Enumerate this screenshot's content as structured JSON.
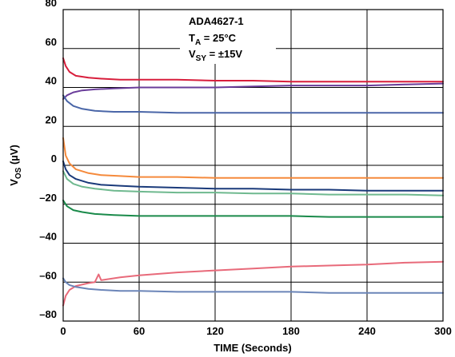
{
  "chart_data": {
    "type": "line",
    "xlabel": "TIME (Seconds)",
    "ylabel_main": "V",
    "ylabel_sub": "OS",
    "ylabel_unit": " (µV)",
    "xlim": [
      0,
      300
    ],
    "ylim": [
      -80,
      80
    ],
    "xticks": [
      0,
      60,
      120,
      180,
      240,
      300
    ],
    "yticks": [
      80,
      60,
      40,
      20,
      0,
      -20,
      -40,
      -60,
      -80
    ],
    "xtick_labels": [
      "0",
      "60",
      "120",
      "180",
      "240",
      "300"
    ],
    "ytick_labels": [
      "80",
      "60",
      "40",
      "20",
      "0",
      "–20",
      "–40",
      "–60",
      "–80"
    ],
    "grid": true,
    "annotation": {
      "line1": "ADA4627-1",
      "line2_main": "T",
      "line2_sub": "A",
      "line2_rest": " = 25°C",
      "line3_main": "V",
      "line3_sub": "SY",
      "line3_rest": " = ±15V"
    },
    "series": [
      {
        "color": "#d81e3c",
        "x": [
          0,
          2,
          5,
          10,
          20,
          30,
          45,
          60,
          90,
          120,
          150,
          180,
          210,
          240,
          270,
          300
        ],
        "y": [
          55,
          51,
          48,
          46,
          45,
          44.5,
          44,
          44,
          44,
          43.5,
          43.5,
          43,
          43,
          43,
          43,
          43
        ]
      },
      {
        "color": "#6a3d9a",
        "x": [
          0,
          3,
          8,
          15,
          25,
          40,
          60,
          90,
          120,
          150,
          180,
          210,
          240,
          270,
          300
        ],
        "y": [
          34,
          36,
          37.5,
          38.5,
          39,
          39.5,
          40,
          40,
          40,
          40.5,
          41,
          41,
          41,
          41.5,
          42
        ]
      },
      {
        "color": "#4a66a8",
        "x": [
          0,
          3,
          8,
          15,
          25,
          40,
          60,
          90,
          120,
          150,
          180,
          210,
          240,
          270,
          300
        ],
        "y": [
          36,
          33,
          30.5,
          29,
          28,
          27.5,
          27.5,
          27,
          27,
          27,
          27,
          27,
          27,
          27,
          27
        ]
      },
      {
        "color": "#f58a3c",
        "x": [
          0,
          2,
          5,
          10,
          20,
          30,
          45,
          60,
          90,
          120,
          150,
          180,
          210,
          240,
          270,
          300
        ],
        "y": [
          14,
          5,
          1,
          -2,
          -4,
          -5,
          -5.5,
          -6,
          -6,
          -6.5,
          -6.5,
          -6.5,
          -6.5,
          -6.5,
          -6.5,
          -6.5
        ]
      },
      {
        "color": "#1a3a7a",
        "x": [
          0,
          2,
          5,
          10,
          20,
          30,
          45,
          60,
          90,
          120,
          150,
          180,
          210,
          240,
          270,
          300
        ],
        "y": [
          2,
          -2,
          -5,
          -7,
          -9,
          -10,
          -10.5,
          -11,
          -11.5,
          -12,
          -12,
          -12.5,
          -12.5,
          -13,
          -13,
          -13
        ]
      },
      {
        "color": "#6fb98f",
        "x": [
          0,
          3,
          8,
          15,
          25,
          40,
          60,
          90,
          120,
          150,
          180,
          210,
          240,
          270,
          300
        ],
        "y": [
          -3,
          -7,
          -9.5,
          -11,
          -12,
          -13,
          -13.5,
          -14,
          -14,
          -14.5,
          -14.5,
          -15,
          -15,
          -15,
          -15.5
        ]
      },
      {
        "color": "#1a8a4a",
        "x": [
          0,
          3,
          8,
          15,
          25,
          40,
          60,
          90,
          120,
          150,
          180,
          210,
          240,
          270,
          300
        ],
        "y": [
          -18,
          -21,
          -23,
          -24,
          -25,
          -25.5,
          -26,
          -26,
          -26,
          -26,
          -26,
          -26.5,
          -26.5,
          -26.5,
          -26.5
        ]
      },
      {
        "color": "#e86a7a",
        "x": [
          0,
          2,
          5,
          10,
          20,
          25,
          28,
          30,
          45,
          60,
          90,
          120,
          150,
          180,
          210,
          240,
          270,
          300
        ],
        "y": [
          -72,
          -67,
          -64,
          -62,
          -60.5,
          -60,
          -56,
          -59,
          -57.5,
          -56.5,
          -55,
          -54,
          -53,
          -52,
          -51.5,
          -51,
          -50,
          -49.5
        ]
      },
      {
        "color": "#6b85b8",
        "x": [
          0,
          2,
          5,
          10,
          20,
          30,
          45,
          60,
          90,
          120,
          150,
          180,
          210,
          240,
          270,
          300
        ],
        "y": [
          -58,
          -60,
          -61.5,
          -62.5,
          -63.5,
          -64,
          -64.5,
          -64.5,
          -65,
          -65,
          -65,
          -65,
          -65.5,
          -65.5,
          -65.5,
          -65.5
        ]
      }
    ]
  }
}
